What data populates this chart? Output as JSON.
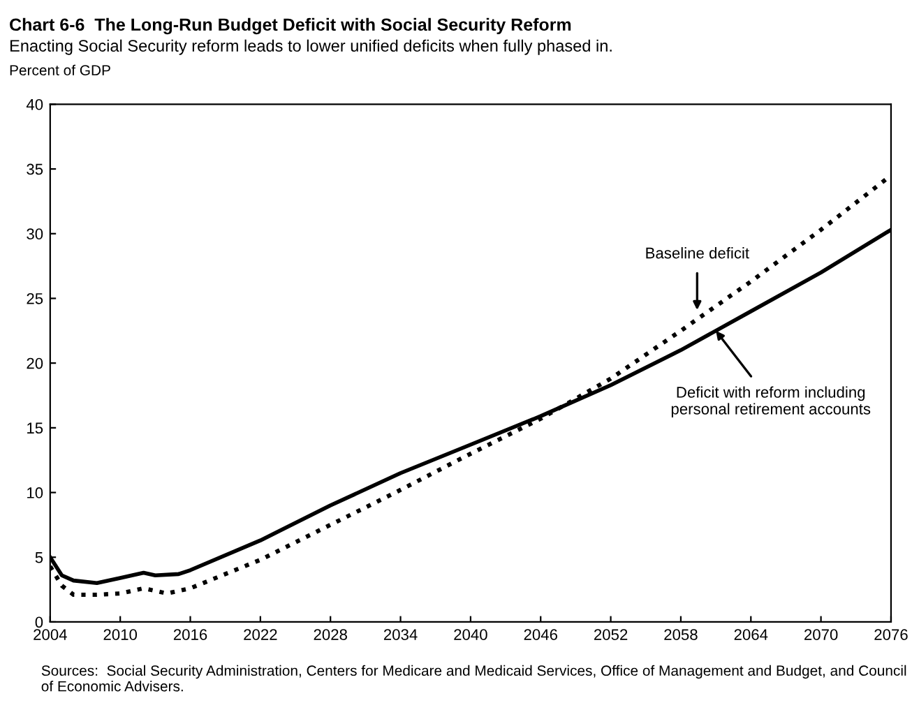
{
  "chart_data": {
    "type": "line",
    "title": "Chart 6-6  The Long-Run Budget Deficit with Social Security Reform",
    "subtitle": "Enacting Social Security reform leads to lower unified deficits when fully phased in.",
    "ylabel": "Percent of GDP",
    "xlim": [
      2004,
      2076
    ],
    "xticks": [
      2004,
      2010,
      2016,
      2022,
      2028,
      2034,
      2040,
      2046,
      2052,
      2058,
      2064,
      2070,
      2076
    ],
    "ylim": [
      0,
      40
    ],
    "yticks": [
      0,
      5,
      10,
      15,
      20,
      25,
      30,
      35,
      40
    ],
    "grid": false,
    "legend": false,
    "series": [
      {
        "color": "#000000",
        "line_style": "solid",
        "x": [
          2004,
          2005,
          2006,
          2008,
          2010,
          2012,
          2013,
          2015,
          2016,
          2022,
          2028,
          2034,
          2040,
          2046,
          2052,
          2058,
          2064,
          2070,
          2076
        ],
        "values": [
          5.0,
          3.6,
          3.2,
          3.0,
          3.4,
          3.8,
          3.6,
          3.7,
          4.0,
          6.3,
          9.0,
          11.5,
          13.7,
          15.9,
          18.3,
          21.0,
          24.0,
          27.0,
          30.3
        ]
      },
      {
        "color": "#000000",
        "line_style": "dotted",
        "x": [
          2004,
          2005,
          2006,
          2008,
          2010,
          2012,
          2014,
          2016,
          2022,
          2028,
          2034,
          2040,
          2046,
          2052,
          2058,
          2064,
          2070,
          2076
        ],
        "values": [
          4.3,
          2.8,
          2.1,
          2.1,
          2.2,
          2.6,
          2.2,
          2.6,
          4.8,
          7.5,
          10.2,
          13.0,
          15.7,
          18.8,
          22.5,
          26.3,
          30.3,
          34.5
        ]
      }
    ],
    "annotations": [
      {
        "text": "Baseline deficit",
        "x": 2059.4,
        "y": 24.1
      },
      {
        "text": "Deficit with reform including\npersonal retirement accounts",
        "x": 2061,
        "y": 22.5
      },
      "Sources:  Social Security Administration, Centers for Medicare and Medicaid Services, Office of Management and Budget, and Council of Economic Advisers."
    ]
  }
}
